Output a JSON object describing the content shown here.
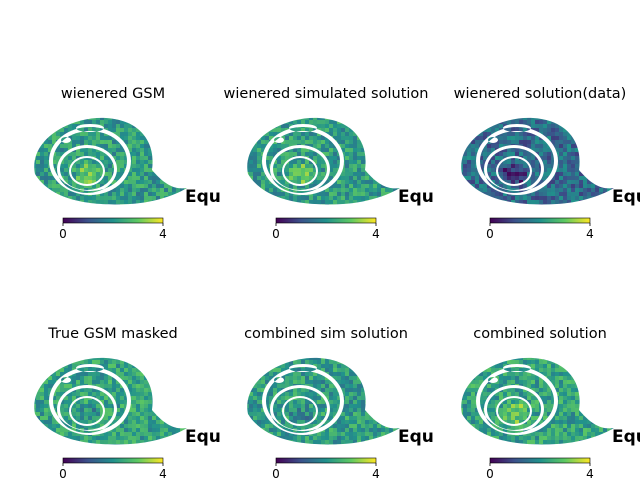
{
  "figure": {
    "colormap": [
      "#440154",
      "#3b528b",
      "#21918c",
      "#5ec962",
      "#fde725"
    ]
  },
  "chart_data": [
    {
      "type": "heatmap",
      "title": "wienered GSM",
      "coord_label": "Equ",
      "colorbar": {
        "min": 0,
        "max": 4,
        "ticks": [
          "0",
          "4"
        ]
      },
      "projection": "orthographic spiral (masked)",
      "typical_value": 2.2,
      "center_value": 2.9
    },
    {
      "type": "heatmap",
      "title": "wienered simulated solution",
      "coord_label": "Equ",
      "colorbar": {
        "min": 0,
        "max": 4,
        "ticks": [
          "0",
          "4"
        ]
      },
      "projection": "orthographic spiral (masked)",
      "typical_value": 2.2,
      "center_value": 2.9
    },
    {
      "type": "heatmap",
      "title": "wienered solution(data)",
      "coord_label": "Equ",
      "colorbar": {
        "min": 0,
        "max": 4,
        "ticks": [
          "0",
          "4"
        ]
      },
      "projection": "orthographic spiral (masked)",
      "typical_value": 1.4,
      "center_value": 0.7
    },
    {
      "type": "heatmap",
      "title": "True GSM masked",
      "coord_label": "Equ",
      "colorbar": {
        "min": 0,
        "max": 4,
        "ticks": [
          "0",
          "4"
        ]
      },
      "projection": "orthographic spiral (masked)",
      "typical_value": 2.3,
      "center_value": 2.0
    },
    {
      "type": "heatmap",
      "title": "combined sim solution",
      "coord_label": "Equ",
      "colorbar": {
        "min": 0,
        "max": 4,
        "ticks": [
          "0",
          "4"
        ]
      },
      "projection": "orthographic spiral (masked)",
      "typical_value": 2.2,
      "center_value": 1.9
    },
    {
      "type": "heatmap",
      "title": "combined solution",
      "coord_label": "Equ",
      "colorbar": {
        "min": 0,
        "max": 4,
        "ticks": [
          "0",
          "4"
        ]
      },
      "projection": "orthographic spiral (masked)",
      "typical_value": 2.3,
      "center_value": 3.0
    }
  ]
}
